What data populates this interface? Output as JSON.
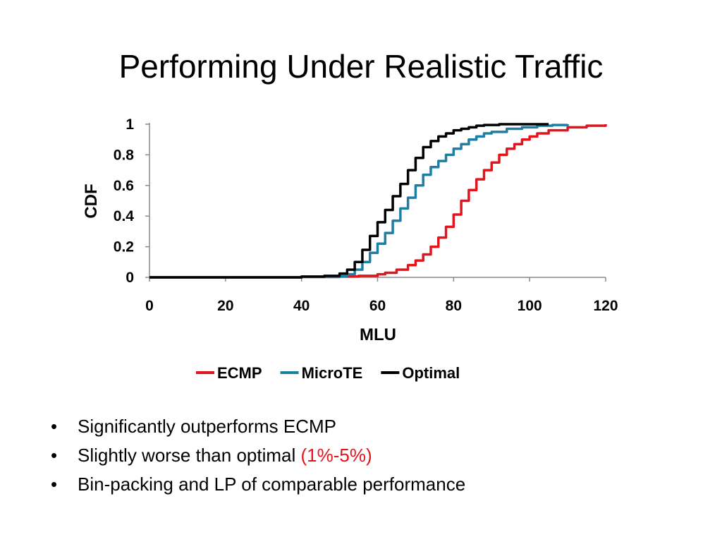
{
  "slide": {
    "title": "Performing Under Realistic Traffic",
    "bullets": [
      {
        "text": "Significantly outperforms ECMP",
        "highlight": ""
      },
      {
        "text": "Slightly worse than optimal ",
        "highlight": "(1%-5%)"
      },
      {
        "text": "Bin-packing and LP of comparable performance",
        "highlight": ""
      }
    ],
    "bullet_symbol": "•",
    "highlight_color": "#e3141b"
  },
  "chart_data": {
    "type": "line",
    "title": "",
    "xlabel": "MLU",
    "ylabel": "CDF",
    "xlim": [
      0,
      120
    ],
    "ylim": [
      0,
      1
    ],
    "xticks": [
      0,
      20,
      40,
      60,
      80,
      100,
      120
    ],
    "xtick_labels": [
      "0",
      "20",
      "40",
      "60",
      "80",
      "100",
      "120"
    ],
    "yticks": [
      0,
      0.2,
      0.4,
      0.6,
      0.8,
      1
    ],
    "ytick_labels": [
      "0",
      "0.2",
      "0.4",
      "0.6",
      "0.8",
      "1"
    ],
    "grid": false,
    "legend": "bottom",
    "series": [
      {
        "name": "ECMP",
        "color": "#e3141b",
        "x": [
          0,
          20,
          40,
          50,
          55,
          60,
          62,
          65,
          68,
          70,
          72,
          74,
          76,
          78,
          80,
          82,
          84,
          86,
          88,
          90,
          92,
          94,
          96,
          98,
          100,
          102,
          105,
          110,
          115,
          120
        ],
        "y": [
          0,
          0,
          0.003,
          0.006,
          0.01,
          0.02,
          0.03,
          0.05,
          0.08,
          0.11,
          0.15,
          0.2,
          0.26,
          0.33,
          0.41,
          0.5,
          0.57,
          0.64,
          0.7,
          0.75,
          0.8,
          0.84,
          0.87,
          0.9,
          0.92,
          0.94,
          0.96,
          0.98,
          0.99,
          1.0
        ]
      },
      {
        "name": "MicroTE",
        "color": "#1e7ea3",
        "x": [
          0,
          20,
          40,
          50,
          52,
          54,
          56,
          58,
          60,
          62,
          64,
          66,
          68,
          70,
          72,
          74,
          76,
          78,
          80,
          82,
          84,
          86,
          88,
          90,
          94,
          98,
          102,
          106,
          110
        ],
        "y": [
          0,
          0,
          0.003,
          0.008,
          0.02,
          0.05,
          0.1,
          0.16,
          0.22,
          0.29,
          0.37,
          0.45,
          0.52,
          0.6,
          0.67,
          0.72,
          0.76,
          0.8,
          0.84,
          0.87,
          0.9,
          0.92,
          0.94,
          0.95,
          0.97,
          0.98,
          0.99,
          0.995,
          1.0
        ]
      },
      {
        "name": "Optimal",
        "color": "#000000",
        "x": [
          0,
          20,
          40,
          46,
          50,
          52,
          54,
          56,
          58,
          60,
          62,
          64,
          66,
          68,
          70,
          72,
          74,
          76,
          78,
          80,
          82,
          84,
          86,
          88,
          92,
          96,
          100,
          105
        ],
        "y": [
          0,
          0,
          0.005,
          0.01,
          0.025,
          0.05,
          0.1,
          0.18,
          0.27,
          0.36,
          0.44,
          0.53,
          0.61,
          0.7,
          0.78,
          0.85,
          0.89,
          0.92,
          0.94,
          0.96,
          0.97,
          0.98,
          0.99,
          0.995,
          1.0,
          1.0,
          1.0,
          1.0
        ]
      }
    ]
  }
}
